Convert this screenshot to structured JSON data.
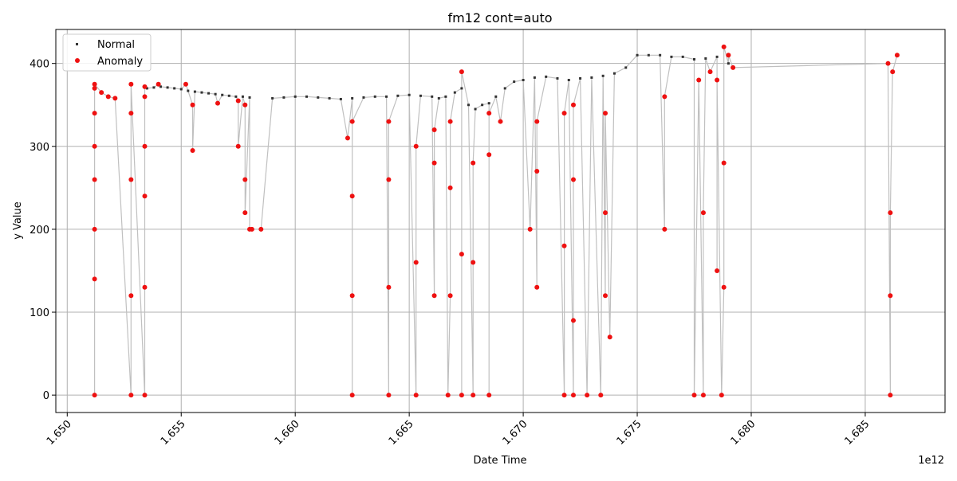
{
  "chart_data": {
    "type": "scatter",
    "title": "fm12 cont=auto",
    "xlabel": "Date Time",
    "ylabel": "y Value",
    "x_offset_label": "1e12",
    "xlim": [
      1.6495,
      1.6885
    ],
    "ylim": [
      -21,
      441
    ],
    "x_ticks": [
      1.65,
      1.655,
      1.66,
      1.665,
      1.67,
      1.675,
      1.68,
      1.685
    ],
    "x_tick_labels": [
      "1.650",
      "1.655",
      "1.660",
      "1.665",
      "1.670",
      "1.675",
      "1.680",
      "1.685"
    ],
    "y_ticks": [
      0,
      100,
      200,
      300,
      400
    ],
    "y_tick_labels": [
      "0",
      "100",
      "200",
      "300",
      "400"
    ],
    "grid": true,
    "legend_position": "upper-left",
    "colors": {
      "normal": "#333333",
      "anomaly": "#ee1111",
      "line": "#c0c0c0",
      "grid": "#b0b0b0"
    },
    "series": [
      {
        "name": "Normal",
        "marker": "small-dot",
        "x": [
          1.6535,
          1.6538,
          1.6541,
          1.6544,
          1.6547,
          1.655,
          1.6553,
          1.6556,
          1.6559,
          1.6562,
          1.6565,
          1.6568,
          1.6571,
          1.6574,
          1.6577,
          1.658,
          1.659,
          1.6595,
          1.66,
          1.6605,
          1.661,
          1.6615,
          1.662,
          1.6625,
          1.663,
          1.6635,
          1.664,
          1.6645,
          1.665,
          1.6655,
          1.666,
          1.6663,
          1.6666,
          1.667,
          1.6673,
          1.6676,
          1.6679,
          1.6682,
          1.6685,
          1.6688,
          1.6692,
          1.6696,
          1.67,
          1.6705,
          1.671,
          1.6715,
          1.672,
          1.6725,
          1.673,
          1.6735,
          1.674,
          1.6745,
          1.675,
          1.6755,
          1.676,
          1.6765,
          1.677,
          1.6775,
          1.678,
          1.6785,
          1.679
        ],
        "y": [
          370,
          371,
          372,
          371,
          370,
          369,
          367,
          366,
          365,
          364,
          363,
          362,
          361,
          360,
          360,
          359,
          358,
          359,
          360,
          360,
          359,
          358,
          357,
          358,
          359,
          360,
          360,
          361,
          362,
          361,
          360,
          358,
          360,
          365,
          370,
          350,
          345,
          350,
          352,
          360,
          370,
          378,
          380,
          383,
          384,
          382,
          380,
          382,
          383,
          385,
          388,
          395,
          410,
          410,
          410,
          408,
          408,
          405,
          406,
          408,
          400
        ]
      },
      {
        "name": "Anomaly",
        "marker": "dot",
        "x": [
          1.6512,
          1.6512,
          1.6512,
          1.6512,
          1.6512,
          1.6512,
          1.6512,
          1.6512,
          1.6515,
          1.6518,
          1.6521,
          1.6528,
          1.6528,
          1.6528,
          1.6528,
          1.6528,
          1.6534,
          1.6534,
          1.6534,
          1.6534,
          1.6534,
          1.6534,
          1.654,
          1.6552,
          1.6555,
          1.6555,
          1.6566,
          1.6575,
          1.6575,
          1.6578,
          1.6578,
          1.6578,
          1.658,
          1.6581,
          1.6585,
          1.6623,
          1.6625,
          1.6625,
          1.6625,
          1.6625,
          1.6641,
          1.6641,
          1.6641,
          1.6641,
          1.6653,
          1.6653,
          1.6653,
          1.6661,
          1.6661,
          1.6661,
          1.6667,
          1.6668,
          1.6668,
          1.6668,
          1.6673,
          1.6673,
          1.6673,
          1.6678,
          1.6678,
          1.6678,
          1.6685,
          1.6685,
          1.6685,
          1.669,
          1.6703,
          1.6706,
          1.6706,
          1.6706,
          1.6718,
          1.6718,
          1.6718,
          1.6722,
          1.6722,
          1.6722,
          1.6722,
          1.6728,
          1.6734,
          1.6736,
          1.6736,
          1.6736,
          1.6738,
          1.6762,
          1.6762,
          1.6775,
          1.6777,
          1.6779,
          1.6779,
          1.6782,
          1.6785,
          1.6785,
          1.6787,
          1.6788,
          1.6788,
          1.6788,
          1.679,
          1.6792,
          1.686,
          1.6861,
          1.6861,
          1.6861,
          1.6862,
          1.6864
        ],
        "y": [
          0,
          140,
          200,
          260,
          300,
          340,
          370,
          375,
          365,
          360,
          358,
          0,
          120,
          260,
          340,
          375,
          0,
          130,
          240,
          300,
          360,
          372,
          375,
          375,
          350,
          295,
          352,
          355,
          300,
          350,
          260,
          220,
          200,
          200,
          200,
          310,
          0,
          120,
          240,
          330,
          0,
          130,
          260,
          330,
          0,
          160,
          300,
          120,
          280,
          320,
          0,
          120,
          250,
          330,
          0,
          170,
          390,
          0,
          160,
          280,
          0,
          290,
          340,
          330,
          200,
          130,
          270,
          330,
          0,
          180,
          340,
          0,
          90,
          260,
          350,
          0,
          0,
          120,
          220,
          340,
          70,
          200,
          360,
          0,
          380,
          0,
          220,
          390,
          150,
          380,
          0,
          130,
          280,
          420,
          410,
          395,
          400,
          0,
          120,
          220,
          390,
          410
        ]
      }
    ]
  }
}
